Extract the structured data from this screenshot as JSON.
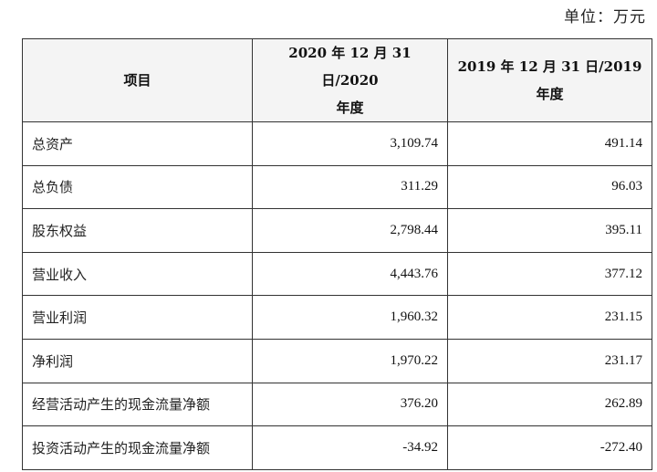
{
  "unit_label": "单位：万元",
  "table": {
    "headers": {
      "item": "项目",
      "col2020_line1": "2020 年 12 月 31 日/2020",
      "col2020_line2": "年度",
      "col2019_line1": "2019 年 12 月 31 日/2019",
      "col2019_line2": "年度"
    },
    "rows": [
      {
        "label": "总资产",
        "v2020": "3,109.74",
        "v2019": "491.14"
      },
      {
        "label": "总负债",
        "v2020": "311.29",
        "v2019": "96.03"
      },
      {
        "label": "股东权益",
        "v2020": "2,798.44",
        "v2019": "395.11"
      },
      {
        "label": "营业收入",
        "v2020": "4,443.76",
        "v2019": "377.12"
      },
      {
        "label": "营业利润",
        "v2020": "1,960.32",
        "v2019": "231.15"
      },
      {
        "label": "净利润",
        "v2020": "1,970.22",
        "v2019": "231.17"
      },
      {
        "label": "经营活动产生的现金流量净额",
        "v2020": "376.20",
        "v2019": "262.89"
      },
      {
        "label": "投资活动产生的现金流量净额",
        "v2020": "-34.92",
        "v2019": "-272.40"
      }
    ]
  }
}
